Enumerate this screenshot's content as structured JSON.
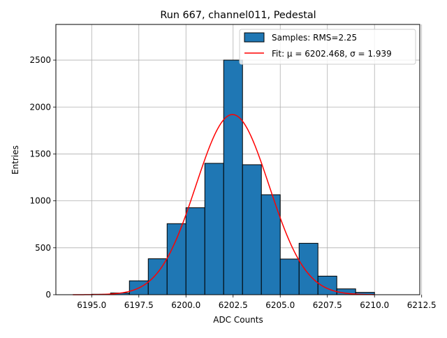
{
  "chart_data": {
    "type": "bar",
    "title": "Run 667, channel011, Pedestal",
    "xlabel": "ADC Counts",
    "ylabel": "Entries",
    "xlim": [
      6193.1,
      6212.4
    ],
    "ylim": [
      0,
      2880
    ],
    "xticks": [
      6195.0,
      6197.5,
      6200.0,
      6202.5,
      6205.0,
      6207.5,
      6210.0,
      6212.5
    ],
    "xtick_labels": [
      "6195.0",
      "6197.5",
      "6200.0",
      "6202.5",
      "6205.0",
      "6207.5",
      "6210.0",
      "6212.5"
    ],
    "yticks": [
      0,
      500,
      1000,
      1500,
      2000,
      2500
    ],
    "ytick_labels": [
      "0",
      "500",
      "1000",
      "1500",
      "2000",
      "2500"
    ],
    "grid": true,
    "legend_position": "top-right",
    "colors": {
      "bars": "#1f77b4",
      "bar_edge": "#000000",
      "fit": "#ff0000",
      "grid": "#b0b0b0"
    },
    "series": [
      {
        "name": "Samples: RMS=2.25",
        "kind": "histogram",
        "bin_edges": [
          6194,
          6195,
          6196,
          6197,
          6198,
          6199,
          6200,
          6201,
          6202,
          6203,
          6204,
          6205,
          6206,
          6207,
          6208,
          6209,
          6210
        ],
        "counts": [
          0,
          5,
          18,
          148,
          383,
          757,
          927,
          1400,
          2500,
          1385,
          1065,
          380,
          548,
          198,
          62,
          25
        ]
      },
      {
        "name": "Fit: μ = 6202.468, σ = 1.939",
        "kind": "gaussian",
        "amplitude": 1920,
        "mu": 6202.468,
        "sigma": 1.939,
        "x_range": [
          6194,
          6210
        ]
      }
    ]
  }
}
